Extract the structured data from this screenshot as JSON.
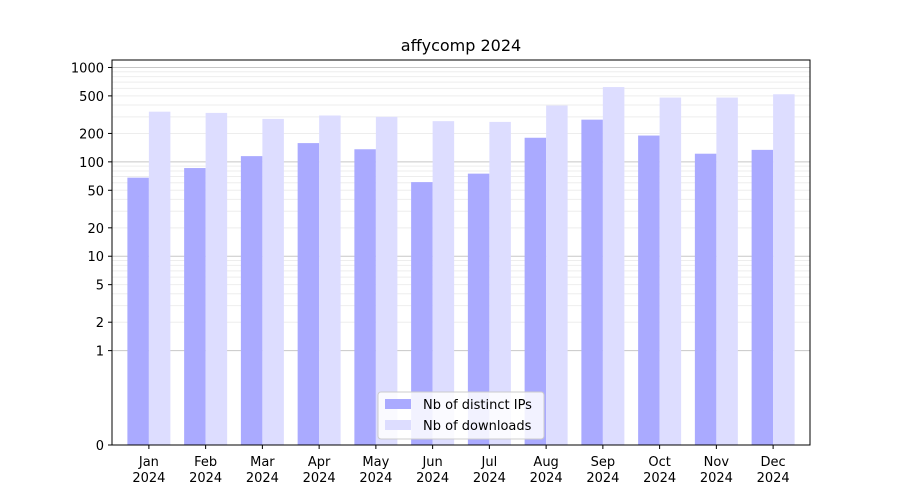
{
  "chart_data": {
    "type": "bar",
    "title": "affycomp 2024",
    "xlabel": "",
    "ylabel": "",
    "yscale": "symlog",
    "ylim": [
      0,
      1200
    ],
    "yticks": [
      0,
      1,
      2,
      5,
      10,
      20,
      50,
      100,
      200,
      500,
      1000
    ],
    "ytick_labels": [
      "0",
      "1",
      "2",
      "5",
      "10",
      "20",
      "50",
      "100",
      "200",
      "500",
      "1000"
    ],
    "grid": true,
    "legend_position": "bottom-center",
    "categories": [
      "Jan\n2024",
      "Feb\n2024",
      "Mar\n2024",
      "Apr\n2024",
      "May\n2024",
      "Jun\n2024",
      "Jul\n2024",
      "Aug\n2024",
      "Sep\n2024",
      "Oct\n2024",
      "Nov\n2024",
      "Dec\n2024"
    ],
    "series": [
      {
        "name": "Nb of distinct IPs",
        "color": "#aaaaff",
        "values": [
          68,
          86,
          115,
          158,
          136,
          61,
          75,
          180,
          280,
          190,
          122,
          134
        ]
      },
      {
        "name": "Nb of downloads",
        "color": "#ddddff",
        "values": [
          340,
          330,
          285,
          310,
          300,
          270,
          265,
          395,
          620,
          480,
          480,
          520
        ]
      }
    ]
  }
}
